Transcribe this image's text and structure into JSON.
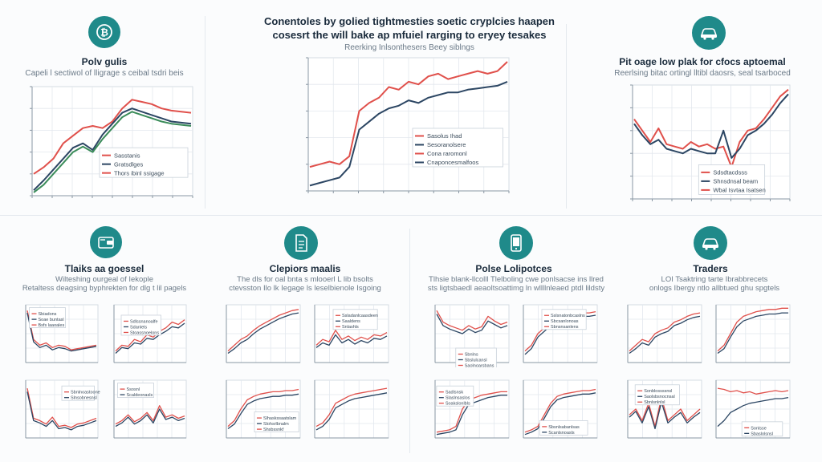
{
  "colors": {
    "red": "#e0504b",
    "navy": "#2c4663",
    "green": "#3b8c5a",
    "teal": "#1f8a8a",
    "axis": "#8a97a4",
    "grid": "#e3e8ee"
  },
  "header": {
    "line1": "Conentoles by golied tightmesties soetic cryplcies haapen",
    "line2": "cosesrt the will bake ap mfuiel rarging to eryey tesakes",
    "subtitle": "Reerking Inlsonthesers Beey siblngs"
  },
  "panels": [
    {
      "icon": "bitcoin-coin-icon",
      "title": "Polv gulis",
      "subtitle": "Capeli l sectiwol of lligrage s ceibal tsdri beis"
    },
    {
      "icon": "car-icon",
      "title": "Pit oage low plak for cfocs aptoemal",
      "subtitle": "Reerlsing bitac ortingl lltibl daosrs, seal tsarboced"
    },
    {
      "icon": "wallet-icon",
      "title": "Tlaiks aa goessel",
      "subtitle": "Wilteshing ourgeal of Iekople\nRetaltess deagsing byphrekten for dlg t lil pagels"
    },
    {
      "icon": "document-icon",
      "title": "Clepiors maalis",
      "subtitle": "The dls for oal bnta s mlooerl L lib bsolts\nctevsston Ilo lk Iegage ls leselbienole Isgoing"
    },
    {
      "icon": "phone-icon",
      "title": "Polse Lolipotces",
      "subtitle": "Tlhsie blank-llcolll Tlelboling cwe ponlsacse ins llred\nsts ligtsbaedl aeaoltsoattimg ln wllllnleaed ptdl lildsty"
    },
    {
      "icon": "car-icon",
      "title": "Traders",
      "subtitle": "LOI Tsaktring tarte Ibrabbrecets\nonlogs Ibergy ntlo allbtued ghu spgtels"
    }
  ],
  "legends": {
    "main": [
      "Sasolus Ihad",
      "Sesoranolsere",
      "Cona raromonl",
      "Cnaponcesmalfoos"
    ],
    "p1": [
      "Sasstanis",
      "Gratsdlges",
      "Thors ibinl ssigage"
    ],
    "p2": [
      "Sdsdtacdsss",
      "Shnsdnsal beam",
      "Wbal Isvtaa Isatsen"
    ],
    "mini_a": [
      "Sbiadons",
      "Soae buntasl",
      "Bsfs laaoales"
    ],
    "mini_b": [
      "Sdlssnanoalfe",
      "Sdanlels",
      "Stoassnoelons"
    ],
    "mini_c": [
      "Sbnlnoastoone",
      "Slnsobnesnsl"
    ],
    "mini_d": [
      "Ssosnl",
      "Scaldeonasls"
    ],
    "mini_e": [
      "Ssladanlcaasdeen",
      "Saaldens",
      "Snlashls"
    ],
    "mini_f": [
      "Slhaskssaatslam",
      "Slohsrlbnalm",
      "Shsbssnkf"
    ],
    "mini_g": [
      "Sbnlns",
      "Sbslulcansl",
      "Saolnoarsbans"
    ],
    "mini_h": [
      "Sslsnatonbcaslns",
      "Sbcsanlonoas",
      "Sbnsnsanlens"
    ],
    "mini_i": [
      "Sadlsnsk",
      "Slaslnsaslos",
      "Soakslonlbls"
    ],
    "mini_j": [
      "Sbsnlsabanlsas",
      "Scanlsnoasls"
    ],
    "mini_k": [
      "Sonblossssnsl",
      "Saolsbsnocnsal",
      "Sbnlsnlnlsl"
    ],
    "mini_l": [
      "Sonlsse",
      "Sbaslolsnsl"
    ]
  },
  "chart_data": [
    {
      "type": "line",
      "y_range": [
        0,
        100
      ],
      "series": [
        {
          "color": "red",
          "values": [
            20,
            26,
            34,
            48,
            55,
            62,
            64,
            62,
            68,
            80,
            88,
            86,
            84,
            80,
            78,
            77,
            76
          ]
        },
        {
          "color": "navy",
          "values": [
            5,
            14,
            24,
            34,
            44,
            48,
            42,
            56,
            66,
            76,
            80,
            77,
            74,
            71,
            68,
            67,
            66
          ]
        },
        {
          "color": "green",
          "values": [
            3,
            10,
            20,
            30,
            40,
            45,
            40,
            52,
            62,
            72,
            77,
            74,
            71,
            68,
            66,
            65,
            64
          ]
        }
      ]
    },
    {
      "type": "line",
      "y_range": [
        0,
        100
      ],
      "series": [
        {
          "color": "red",
          "values": [
            18,
            20,
            22,
            20,
            26,
            60,
            66,
            70,
            78,
            76,
            82,
            80,
            86,
            88,
            84,
            86,
            88,
            90,
            88,
            90,
            97
          ]
        },
        {
          "color": "navy",
          "values": [
            4,
            6,
            8,
            10,
            18,
            46,
            52,
            58,
            62,
            64,
            68,
            66,
            70,
            72,
            74,
            74,
            76,
            77,
            78,
            79,
            82
          ]
        }
      ]
    },
    {
      "type": "line",
      "y_range": [
        0,
        100
      ],
      "series": [
        {
          "color": "red",
          "values": [
            70,
            60,
            50,
            62,
            48,
            46,
            44,
            50,
            46,
            48,
            44,
            46,
            28,
            50,
            60,
            62,
            70,
            80,
            90,
            96
          ]
        },
        {
          "color": "navy",
          "values": [
            66,
            56,
            48,
            52,
            44,
            42,
            40,
            44,
            42,
            40,
            40,
            60,
            36,
            44,
            56,
            60,
            66,
            74,
            84,
            92
          ]
        }
      ]
    },
    {
      "type": "line",
      "y_range": [
        0,
        100
      ],
      "series": [
        {
          "color": "red",
          "values": [
            90,
            40,
            30,
            34,
            26,
            30,
            28,
            22,
            24,
            26,
            28,
            30
          ]
        },
        {
          "color": "navy",
          "values": [
            86,
            36,
            26,
            30,
            22,
            26,
            24,
            20,
            22,
            24,
            26,
            28
          ]
        }
      ]
    },
    {
      "type": "line",
      "y_range": [
        0,
        100
      ],
      "series": [
        {
          "color": "red",
          "values": [
            20,
            30,
            28,
            40,
            36,
            48,
            44,
            54,
            60,
            70,
            66,
            74
          ]
        },
        {
          "color": "navy",
          "values": [
            16,
            26,
            24,
            34,
            32,
            42,
            40,
            48,
            54,
            62,
            60,
            68
          ]
        }
      ]
    },
    {
      "type": "line",
      "y_range": [
        0,
        100
      ],
      "series": [
        {
          "color": "red",
          "values": [
            86,
            34,
            30,
            24,
            36,
            20,
            22,
            18,
            24,
            26,
            30,
            34
          ]
        },
        {
          "color": "navy",
          "values": [
            80,
            30,
            26,
            20,
            30,
            16,
            18,
            14,
            20,
            22,
            26,
            30
          ]
        }
      ]
    },
    {
      "type": "line",
      "y_range": [
        0,
        100
      ],
      "series": [
        {
          "color": "red",
          "values": [
            24,
            30,
            40,
            28,
            34,
            44,
            30,
            56,
            36,
            40,
            34,
            38
          ]
        },
        {
          "color": "navy",
          "values": [
            20,
            26,
            36,
            24,
            30,
            40,
            26,
            50,
            32,
            36,
            30,
            34
          ]
        }
      ]
    },
    {
      "type": "line",
      "y_range": [
        0,
        100
      ],
      "series": [
        {
          "color": "red",
          "values": [
            20,
            30,
            40,
            46,
            56,
            64,
            70,
            76,
            82,
            86,
            90,
            92
          ]
        },
        {
          "color": "navy",
          "values": [
            16,
            24,
            34,
            40,
            50,
            58,
            64,
            70,
            76,
            80,
            84,
            86
          ]
        }
      ]
    },
    {
      "type": "line",
      "y_range": [
        0,
        100
      ],
      "series": [
        {
          "color": "red",
          "values": [
            30,
            40,
            36,
            56,
            40,
            46,
            38,
            44,
            40,
            48,
            46,
            52
          ]
        },
        {
          "color": "navy",
          "values": [
            26,
            34,
            30,
            48,
            34,
            40,
            32,
            38,
            34,
            42,
            40,
            46
          ]
        }
      ]
    },
    {
      "type": "line",
      "y_range": [
        0,
        100
      ],
      "series": [
        {
          "color": "red",
          "values": [
            20,
            30,
            50,
            66,
            72,
            76,
            78,
            80,
            80,
            82,
            82,
            84
          ]
        },
        {
          "color": "navy",
          "values": [
            16,
            24,
            42,
            58,
            64,
            68,
            70,
            72,
            72,
            74,
            74,
            76
          ]
        }
      ]
    },
    {
      "type": "line",
      "y_range": [
        0,
        100
      ],
      "series": [
        {
          "color": "red",
          "values": [
            20,
            26,
            40,
            60,
            66,
            72,
            76,
            78,
            80,
            82,
            84,
            86
          ]
        },
        {
          "color": "navy",
          "values": [
            14,
            20,
            32,
            52,
            58,
            64,
            68,
            70,
            72,
            74,
            76,
            78
          ]
        }
      ]
    },
    {
      "type": "line",
      "y_range": [
        0,
        100
      ],
      "series": [
        {
          "color": "red",
          "values": [
            90,
            70,
            64,
            60,
            56,
            64,
            58,
            62,
            80,
            72,
            66,
            70
          ]
        },
        {
          "color": "navy",
          "values": [
            84,
            64,
            58,
            54,
            50,
            58,
            52,
            56,
            72,
            66,
            60,
            64
          ]
        }
      ]
    },
    {
      "type": "line",
      "y_range": [
        0,
        100
      ],
      "series": [
        {
          "color": "red",
          "values": [
            20,
            30,
            50,
            60,
            70,
            76,
            80,
            82,
            84,
            86,
            86,
            88
          ]
        },
        {
          "color": "navy",
          "values": [
            14,
            24,
            44,
            54,
            64,
            70,
            74,
            76,
            78,
            80,
            80,
            82
          ]
        }
      ]
    },
    {
      "type": "line",
      "y_range": [
        0,
        100
      ],
      "series": [
        {
          "color": "red",
          "values": [
            10,
            12,
            14,
            20,
            50,
            66,
            70,
            74,
            76,
            78,
            80,
            80
          ]
        },
        {
          "color": "navy",
          "values": [
            6,
            8,
            10,
            14,
            40,
            58,
            62,
            66,
            70,
            72,
            74,
            74
          ]
        }
      ]
    },
    {
      "type": "line",
      "y_range": [
        0,
        100
      ],
      "series": [
        {
          "color": "red",
          "values": [
            10,
            14,
            20,
            40,
            60,
            72,
            76,
            78,
            80,
            82,
            82,
            84
          ]
        },
        {
          "color": "navy",
          "values": [
            6,
            10,
            16,
            34,
            54,
            66,
            70,
            72,
            74,
            76,
            76,
            78
          ]
        }
      ]
    },
    {
      "type": "line",
      "y_range": [
        0,
        100
      ],
      "series": [
        {
          "color": "red",
          "values": [
            20,
            30,
            40,
            36,
            50,
            56,
            60,
            70,
            74,
            80,
            84,
            86
          ]
        },
        {
          "color": "navy",
          "values": [
            16,
            24,
            34,
            30,
            44,
            50,
            54,
            64,
            68,
            74,
            78,
            80
          ]
        }
      ]
    },
    {
      "type": "line",
      "y_range": [
        0,
        100
      ],
      "series": [
        {
          "color": "red",
          "values": [
            20,
            30,
            50,
            70,
            80,
            84,
            88,
            90,
            92,
            92,
            94,
            94
          ]
        },
        {
          "color": "navy",
          "values": [
            16,
            24,
            44,
            62,
            72,
            76,
            80,
            82,
            84,
            84,
            86,
            86
          ]
        }
      ]
    },
    {
      "type": "line",
      "y_range": [
        0,
        100
      ],
      "series": [
        {
          "color": "red",
          "values": [
            40,
            50,
            30,
            60,
            20,
            70,
            30,
            40,
            50,
            30,
            40,
            50
          ]
        },
        {
          "color": "navy",
          "values": [
            36,
            46,
            26,
            54,
            16,
            62,
            26,
            36,
            44,
            26,
            36,
            44
          ]
        }
      ]
    },
    {
      "type": "line",
      "y_range": [
        0,
        100
      ],
      "series": [
        {
          "color": "red",
          "values": [
            86,
            84,
            80,
            82,
            78,
            80,
            76,
            78,
            80,
            82,
            80,
            82
          ]
        },
        {
          "color": "navy",
          "values": [
            20,
            30,
            44,
            50,
            56,
            60,
            62,
            64,
            66,
            68,
            68,
            70
          ]
        }
      ]
    }
  ]
}
